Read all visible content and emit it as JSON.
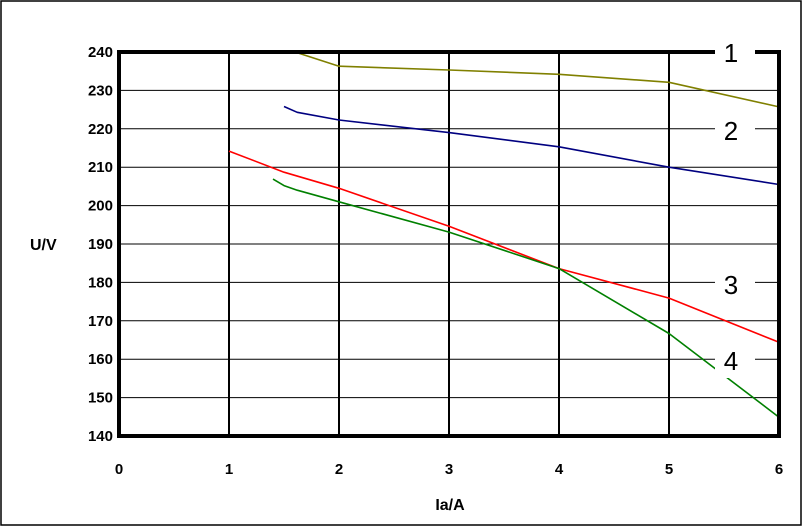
{
  "chart_data": {
    "type": "line",
    "title": "",
    "xlabel": "Ia/A",
    "ylabel": "U/V",
    "xlim": [
      0,
      6
    ],
    "ylim": [
      140,
      240
    ],
    "xticks": [
      "0",
      "1",
      "2",
      "3",
      "4",
      "5",
      "6"
    ],
    "yticks": [
      "240",
      "230",
      "220",
      "210",
      "200",
      "190",
      "180",
      "170",
      "160",
      "150",
      "140"
    ],
    "grid": true,
    "legend": "none",
    "series": [
      {
        "name": "1",
        "color": "#808000",
        "x": [
          1.6,
          2.0,
          3.0,
          4.0,
          5.0,
          6.0
        ],
        "y": [
          240,
          236.3,
          235.3,
          234.2,
          232.1,
          225.7
        ]
      },
      {
        "name": "2",
        "color": "#000080",
        "x": [
          1.5,
          1.62,
          2.0,
          3.0,
          4.0,
          5.0,
          6.0
        ],
        "y": [
          225.8,
          224.3,
          222.3,
          219.0,
          215.3,
          210.0,
          205.5
        ]
      },
      {
        "name": "3",
        "color": "#ff0000",
        "x": [
          1.0,
          1.5,
          2.0,
          3.0,
          4.0,
          5.0,
          6.0
        ],
        "y": [
          214.2,
          208.7,
          204.5,
          194.6,
          183.6,
          175.9,
          164.4
        ]
      },
      {
        "name": "4",
        "color": "#008000",
        "x": [
          1.4,
          1.5,
          1.62,
          2.0,
          3.0,
          4.0,
          5.0,
          6.0
        ],
        "y": [
          206.9,
          205.2,
          204.0,
          201.0,
          193.1,
          183.6,
          166.7,
          144.9
        ]
      }
    ]
  }
}
